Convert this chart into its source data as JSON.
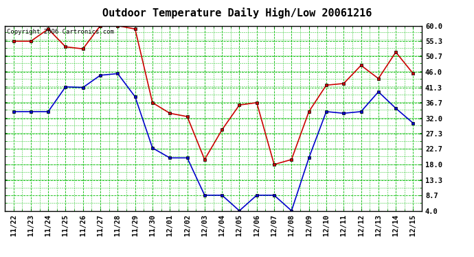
{
  "title": "Outdoor Temperature Daily High/Low 20061216",
  "copyright": "Copyright 2006 Cartronics.com",
  "dates": [
    "11/22",
    "11/23",
    "11/24",
    "11/25",
    "11/26",
    "11/27",
    "11/28",
    "11/29",
    "11/30",
    "12/01",
    "12/02",
    "12/03",
    "12/04",
    "12/05",
    "12/06",
    "12/07",
    "12/08",
    "12/09",
    "12/10",
    "12/11",
    "12/12",
    "12/13",
    "12/14",
    "12/15"
  ],
  "high_temps": [
    55.3,
    55.3,
    59.0,
    53.6,
    53.0,
    60.0,
    60.0,
    59.0,
    36.7,
    33.5,
    32.5,
    19.5,
    28.5,
    36.0,
    36.7,
    18.0,
    19.5,
    34.0,
    42.0,
    42.5,
    48.0,
    44.0,
    52.0,
    45.5
  ],
  "low_temps": [
    34.0,
    34.0,
    34.0,
    41.5,
    41.3,
    45.0,
    45.5,
    38.5,
    23.0,
    20.0,
    20.0,
    8.7,
    8.7,
    4.0,
    8.7,
    8.7,
    4.0,
    20.0,
    34.0,
    33.5,
    34.0,
    40.0,
    35.0,
    30.5
  ],
  "high_color": "#cc0000",
  "low_color": "#0000cc",
  "bg_color": "#ffffff",
  "grid_color": "#00bb00",
  "ymin": 4.0,
  "ymax": 60.0,
  "yticks": [
    4.0,
    8.7,
    13.3,
    18.0,
    22.7,
    27.3,
    32.0,
    36.7,
    41.3,
    46.0,
    50.7,
    55.3,
    60.0
  ],
  "marker": "s",
  "markersize": 3,
  "linewidth": 1.2,
  "title_fontsize": 11,
  "tick_fontsize": 7.5,
  "copyright_fontsize": 6.5
}
